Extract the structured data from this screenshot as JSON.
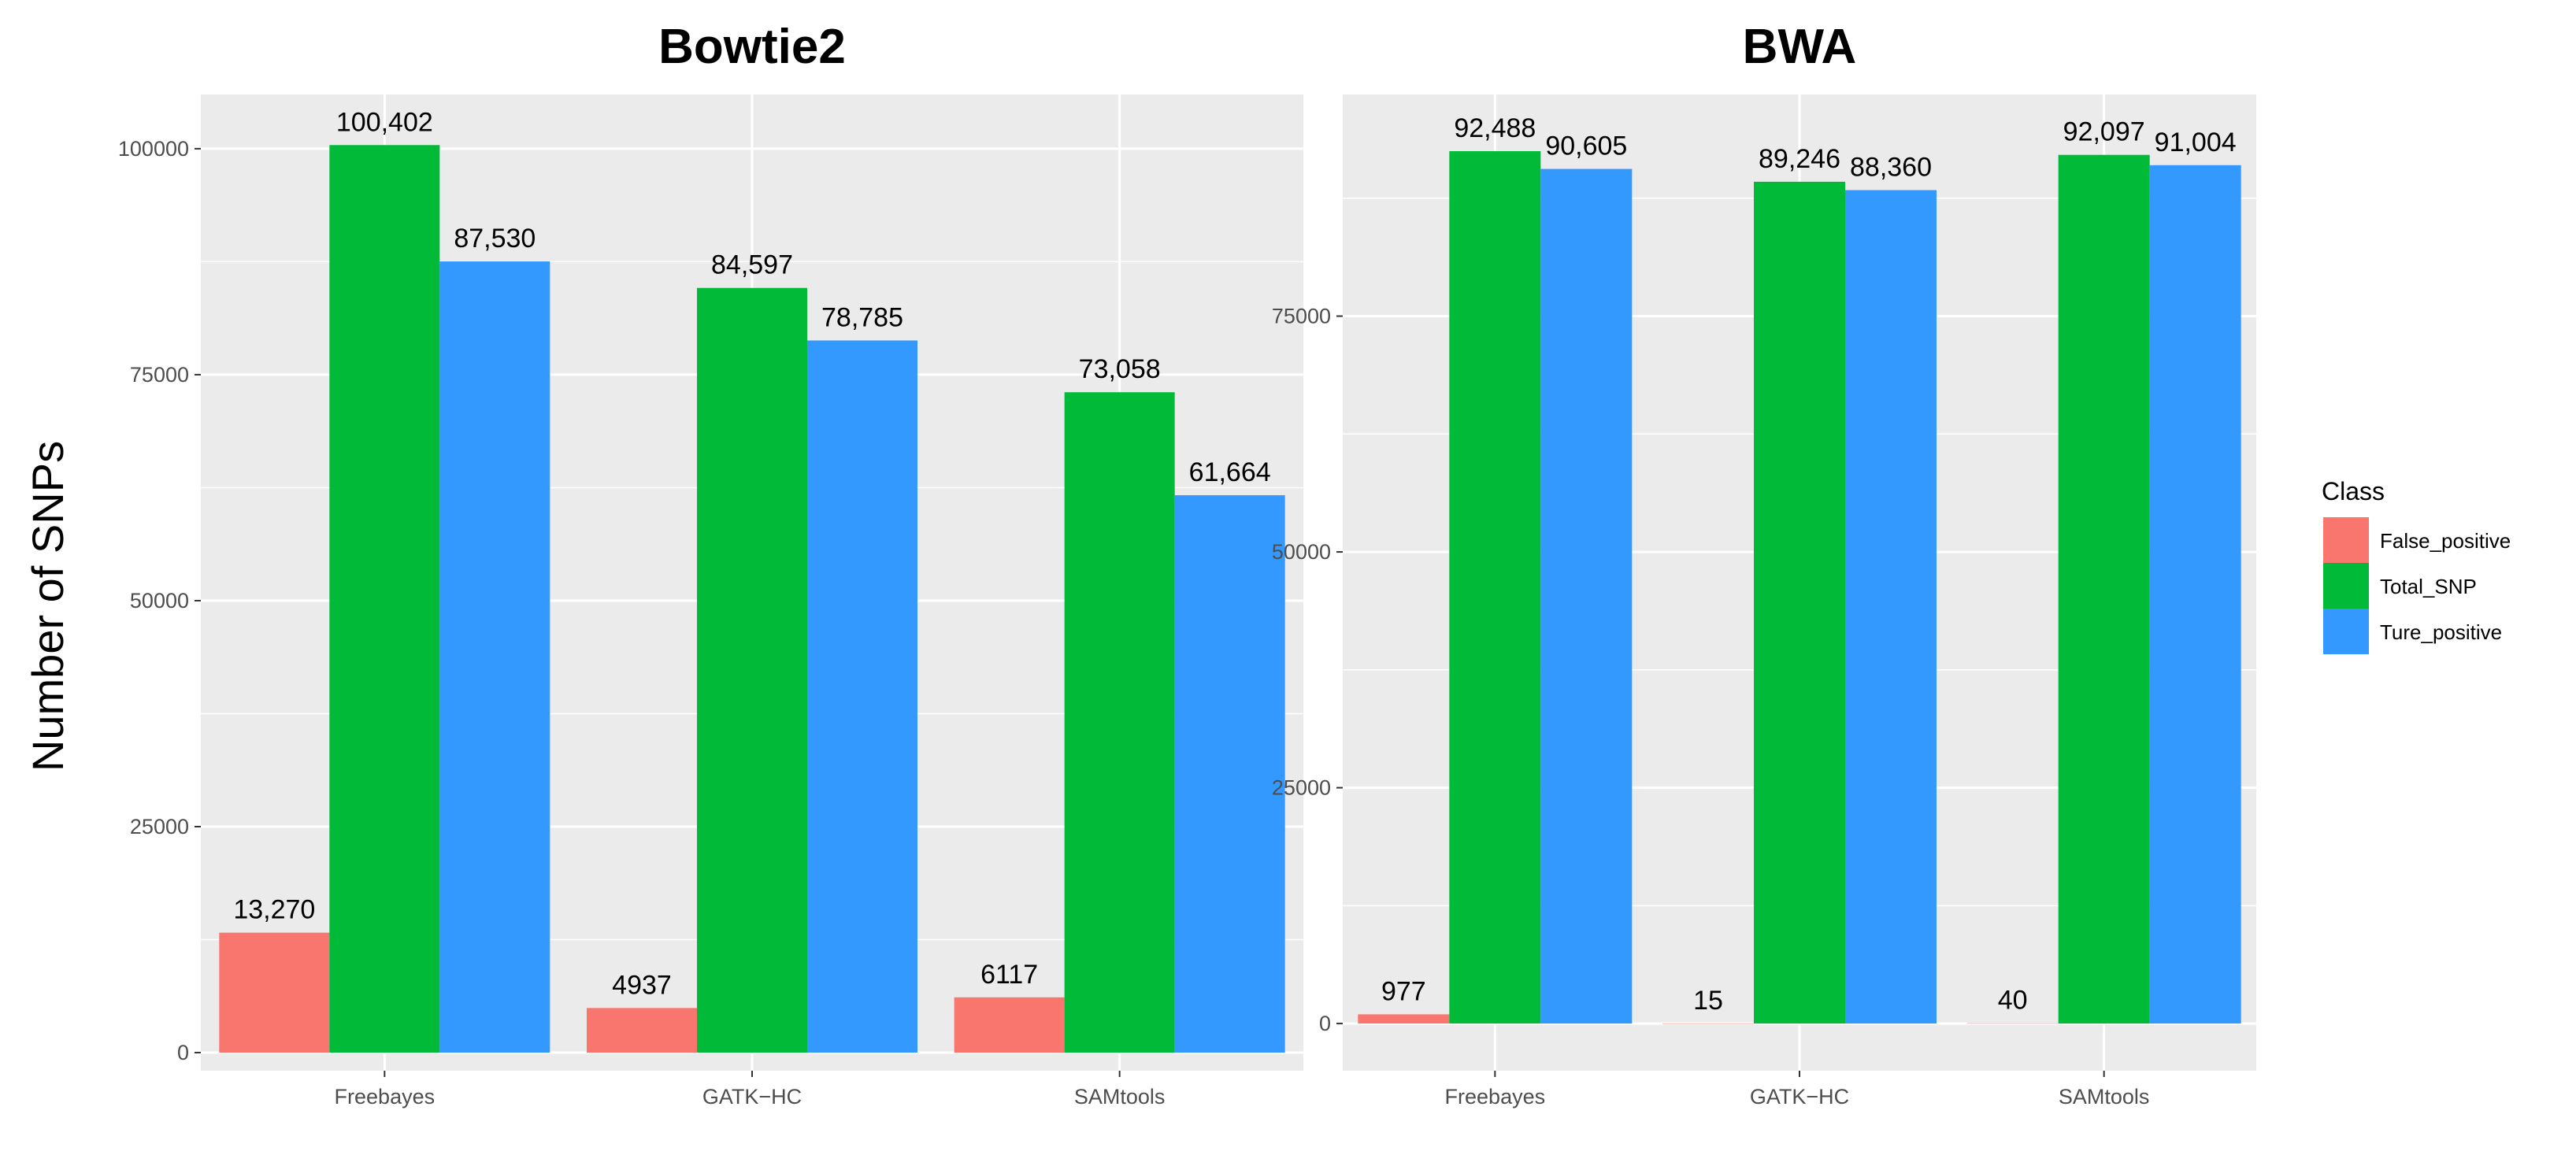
{
  "chart_data": [
    {
      "type": "bar",
      "title": "Bowtie2",
      "xlabel": "",
      "ylabel": "Number of SNPs",
      "categories": [
        "Freebayes",
        "GATK−HC",
        "SAMtools"
      ],
      "ylim": [
        -2000,
        106000
      ],
      "yticks": [
        0,
        25000,
        50000,
        75000,
        100000
      ],
      "ytick_labels": [
        "0",
        "25000",
        "50000",
        "75000",
        "100000"
      ],
      "series": [
        {
          "name": "False_positive",
          "values": [
            13270,
            4937,
            6117
          ],
          "labels": [
            "13,270",
            "4937",
            "6117"
          ]
        },
        {
          "name": "Total_SNP",
          "values": [
            100402,
            84597,
            73058
          ],
          "labels": [
            "100,402",
            "84,597",
            "73,058"
          ]
        },
        {
          "name": "Ture_positive",
          "values": [
            87530,
            78785,
            61664
          ],
          "labels": [
            "87,530",
            "78,785",
            "61,664"
          ]
        }
      ]
    },
    {
      "type": "bar",
      "title": "BWA",
      "xlabel": "",
      "ylabel": "",
      "categories": [
        "Freebayes",
        "GATK−HC",
        "SAMtools"
      ],
      "ylim": [
        -5000,
        98500
      ],
      "yticks": [
        0,
        25000,
        50000,
        75000
      ],
      "ytick_labels": [
        "0",
        "25000",
        "50000",
        "75000"
      ],
      "series": [
        {
          "name": "False_positive",
          "values": [
            977,
            15,
            40
          ],
          "labels": [
            "977",
            "15",
            "40"
          ]
        },
        {
          "name": "Total_SNP",
          "values": [
            92488,
            89246,
            92097
          ],
          "labels": [
            "92,488",
            "89,246",
            "92,097"
          ]
        },
        {
          "name": "Ture_positive",
          "values": [
            90605,
            88360,
            91004
          ],
          "labels": [
            "90,605",
            "88,360",
            "91,004"
          ]
        }
      ]
    }
  ],
  "legend": {
    "title": "Class",
    "placement": "right",
    "items": [
      {
        "label": "False_positive",
        "color": "#F8766D"
      },
      {
        "label": "Total_SNP",
        "color": "#00BA38"
      },
      {
        "label": "Ture_positive",
        "color": "#3399FF"
      }
    ]
  },
  "colors": {
    "panel_bg": "#EBEBEB",
    "grid": "#FFFFFF",
    "series": [
      "#F8766D",
      "#00BA38",
      "#3399FF"
    ]
  }
}
